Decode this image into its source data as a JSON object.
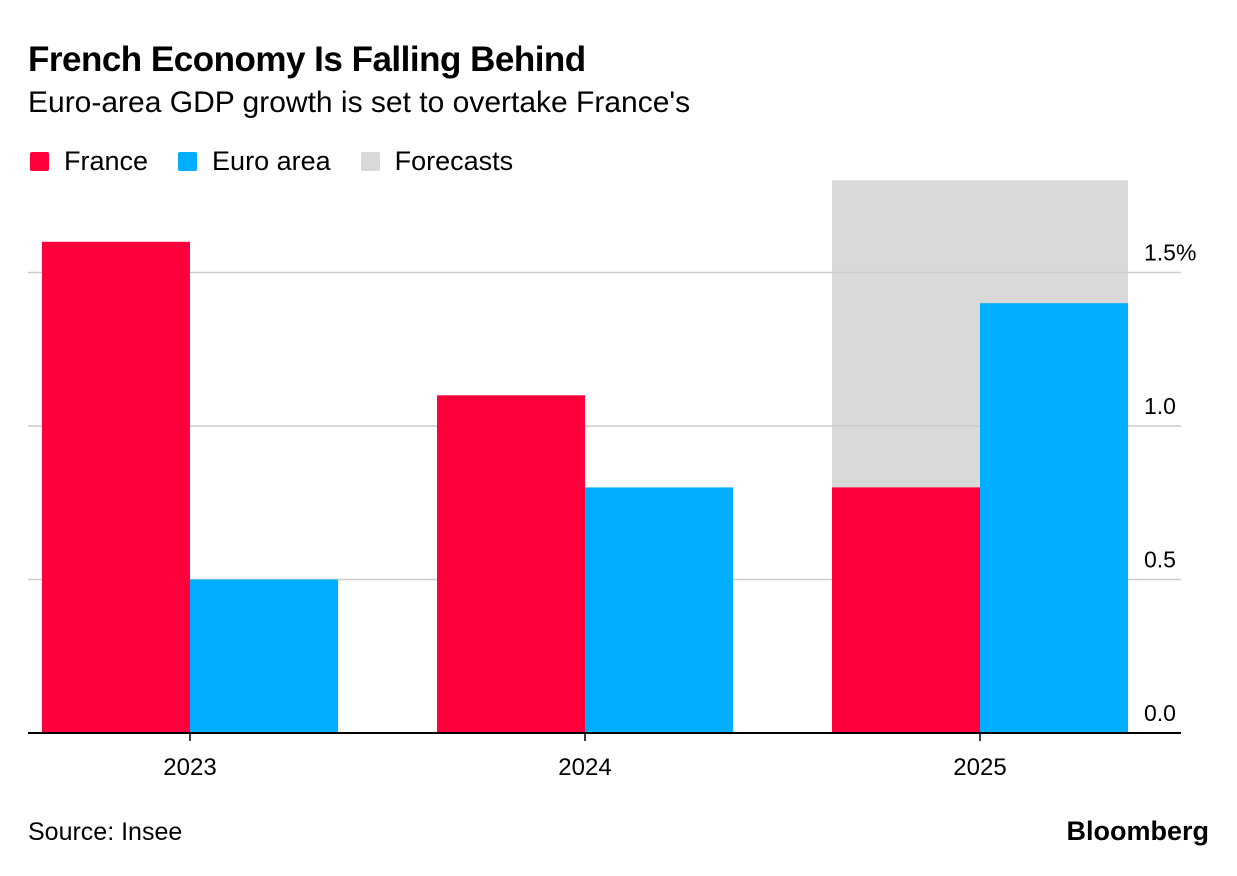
{
  "header": {
    "title": "French Economy Is Falling Behind",
    "subtitle": "Euro-area GDP growth is set to overtake France's"
  },
  "legend": [
    {
      "label": "France",
      "color": "#ff003c"
    },
    {
      "label": "Euro area",
      "color": "#00aeff"
    },
    {
      "label": "Forecasts",
      "color": "#d9d9d9"
    }
  ],
  "footer": {
    "source": "Source: Insee",
    "brand": "Bloomberg"
  },
  "chart_data": {
    "type": "bar",
    "categories": [
      "2023",
      "2024",
      "2025"
    ],
    "series": [
      {
        "name": "France",
        "values": [
          1.6,
          1.1,
          0.8
        ],
        "color": "#ff003c"
      },
      {
        "name": "Euro area",
        "values": [
          0.5,
          0.8,
          1.4
        ],
        "color": "#00aeff"
      }
    ],
    "forecast_categories": [
      "2025"
    ],
    "forecast_label": "Forecasts",
    "forecast_color": "#d9d9d9",
    "y_ticks": [
      {
        "value": 0.0,
        "label": "0.0"
      },
      {
        "value": 0.5,
        "label": "0.5"
      },
      {
        "value": 1.0,
        "label": "1.0"
      },
      {
        "value": 1.5,
        "label": "1.5%"
      }
    ],
    "ylim": [
      0,
      1.8
    ],
    "y_axis_side": "right",
    "grid": true,
    "legend_position": "top-left"
  }
}
